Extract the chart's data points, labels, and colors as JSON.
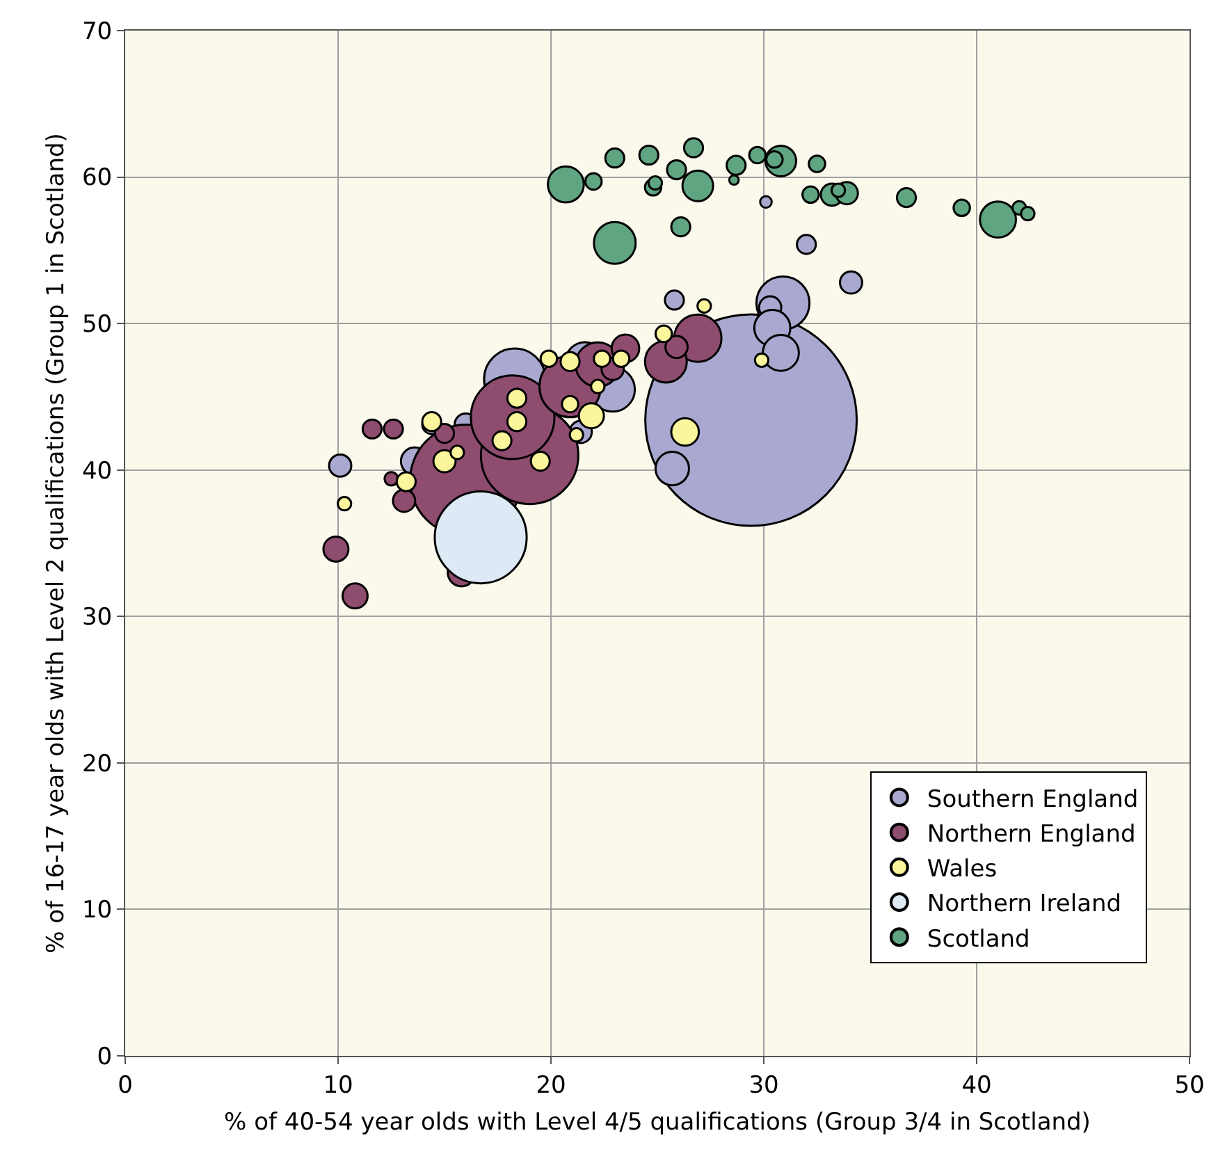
{
  "chart_data": {
    "type": "bubble",
    "xlabel": "% of 40-54 year olds with Level 4/5 qualifications (Group 3/4 in Scotland)",
    "ylabel": "% of 16-17 year olds with Level 2 qualifications (Group 1 in Scotland)",
    "xlim": [
      0,
      50
    ],
    "xticks": [
      0,
      10,
      20,
      30,
      40,
      50
    ],
    "ylim": [
      0,
      70
    ],
    "yticks": [
      0,
      10,
      20,
      30,
      40,
      50,
      60,
      70
    ],
    "grid": true,
    "legend": "bottom right",
    "marker": "circle",
    "series": [
      {
        "name": "Southern England",
        "color": "#a9a8d0",
        "x": [
          29.4,
          10.1,
          13.6,
          18.3,
          25.7,
          30.9,
          30.3,
          30.4,
          30.8,
          25.8,
          34.1,
          32.0,
          30.1,
          21.6,
          22.9,
          14.4,
          16.0,
          21.4
        ],
        "values": [
          43.4,
          40.3,
          40.6,
          46.2,
          40.1,
          51.4,
          51.1,
          49.7,
          48.0,
          51.6,
          52.8,
          55.4,
          58.3,
          47.4,
          45.5,
          43.1,
          43.1,
          42.6
        ],
        "sizes": [
          1,
          0.011,
          0.017,
          0.084,
          0.025,
          0.063,
          0.011,
          0.029,
          0.029,
          0.008,
          0.011,
          0.008,
          0.003,
          0.034,
          0.044,
          0.008,
          0.011,
          0.011
        ]
      },
      {
        "name": "Northern England",
        "color": "#8e4c6e",
        "x": [
          16.0,
          19.0,
          18.2,
          20.9,
          22.2,
          26.9,
          25.4,
          25.9,
          11.6,
          12.6,
          12.5,
          13.1,
          9.9,
          10.8,
          15.8,
          15.0,
          23.5,
          22.9
        ],
        "values": [
          39.3,
          41.0,
          43.6,
          45.7,
          47.2,
          49.0,
          47.4,
          48.4,
          42.8,
          42.8,
          39.4,
          37.9,
          34.6,
          31.4,
          33.0,
          42.5,
          48.3,
          46.9
        ],
        "sizes": [
          0.277,
          0.212,
          0.156,
          0.084,
          0.044,
          0.05,
          0.039,
          0.011,
          0.008,
          0.008,
          0.004,
          0.011,
          0.014,
          0.014,
          0.017,
          0.008,
          0.017,
          0.011
        ]
      },
      {
        "name": "Wales",
        "color": "#fbf59b",
        "x": [
          10.3,
          13.2,
          15.0,
          14.4,
          15.6,
          17.7,
          18.4,
          18.4,
          19.5,
          19.9,
          20.9,
          20.9,
          21.2,
          21.9,
          22.4,
          23.3,
          25.3,
          26.3,
          27.2,
          29.9,
          22.2
        ],
        "values": [
          37.7,
          39.2,
          40.6,
          43.3,
          41.2,
          42.0,
          43.3,
          44.9,
          40.6,
          47.6,
          47.4,
          44.5,
          42.4,
          43.7,
          47.6,
          47.6,
          49.3,
          42.6,
          51.2,
          47.5,
          45.7
        ],
        "sizes": [
          0.004,
          0.008,
          0.011,
          0.008,
          0.004,
          0.008,
          0.008,
          0.008,
          0.008,
          0.006,
          0.008,
          0.006,
          0.004,
          0.014,
          0.006,
          0.006,
          0.006,
          0.017,
          0.004,
          0.004,
          0.004
        ]
      },
      {
        "name": "Northern Ireland",
        "color": "#ddeaf5",
        "x": [
          16.7
        ],
        "values": [
          35.4
        ],
        "sizes": [
          0.189
        ]
      },
      {
        "name": "Scotland",
        "color": "#5fa581",
        "x": [
          20.7,
          22.0,
          23.0,
          24.6,
          24.8,
          24.9,
          25.9,
          26.7,
          26.9,
          23.0,
          26.1,
          28.7,
          28.6,
          29.7,
          30.8,
          30.5,
          32.5,
          32.2,
          33.2,
          33.9,
          33.5,
          36.7,
          39.3,
          41.0,
          42.0,
          42.4
        ],
        "values": [
          59.5,
          59.7,
          61.3,
          61.5,
          59.3,
          59.6,
          60.5,
          62.0,
          59.4,
          55.5,
          56.6,
          60.8,
          59.8,
          61.5,
          61.1,
          61.2,
          60.9,
          58.8,
          58.8,
          58.9,
          59.1,
          58.6,
          57.9,
          57.1,
          57.9,
          57.5
        ],
        "sizes": [
          0.029,
          0.006,
          0.008,
          0.008,
          0.006,
          0.004,
          0.008,
          0.008,
          0.021,
          0.039,
          0.008,
          0.008,
          0.002,
          0.006,
          0.021,
          0.006,
          0.006,
          0.006,
          0.011,
          0.011,
          0.004,
          0.008,
          0.006,
          0.029,
          0.004,
          0.004
        ]
      }
    ]
  }
}
